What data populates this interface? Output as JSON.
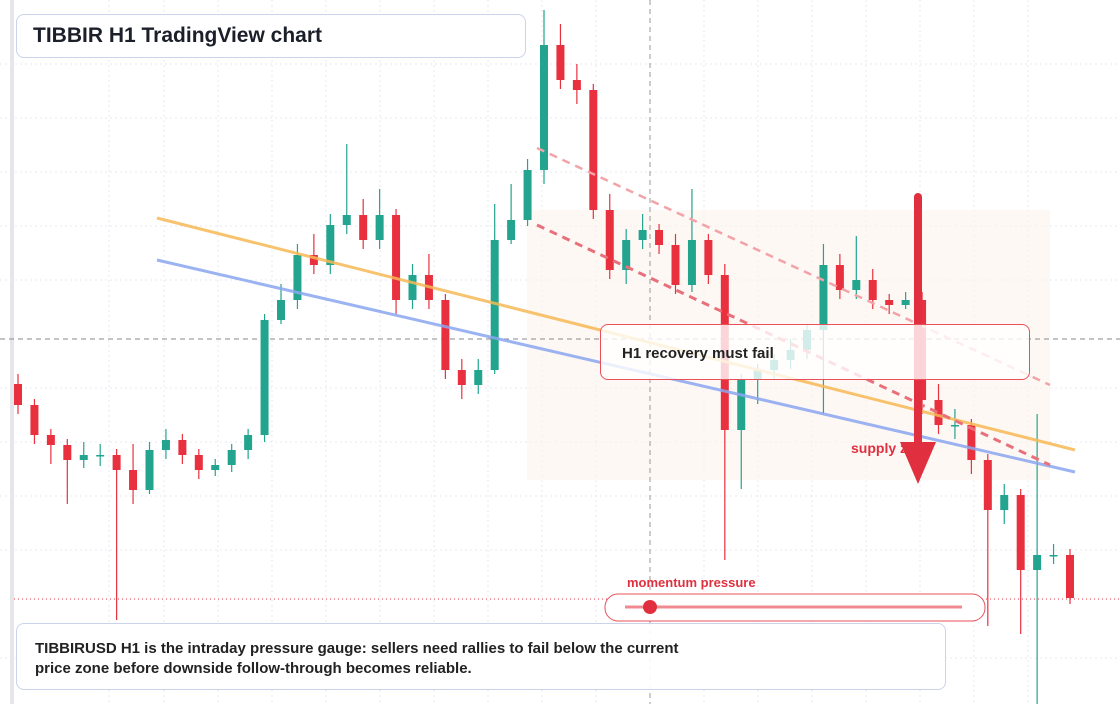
{
  "chart_data": {
    "type": "candlestick",
    "title": "TIBBIR H1 TradingView chart",
    "annotations": {
      "recovery": "H1 recovery must fail",
      "supply": "supply zone",
      "momentum": "momentum pressure"
    },
    "caption": "TIBBIRUSD H1 is the intraday pressure gauge: sellers need rallies to fail below the current price zone before downside follow-through becomes reliable.",
    "up_color": "#22a48f",
    "down_color": "#e8303f",
    "ylim": [
      0,
      704
    ],
    "ohlc": [
      [
        320,
        330,
        290,
        299
      ],
      [
        299,
        305,
        260,
        269
      ],
      [
        269,
        275,
        240,
        259
      ],
      [
        259,
        265,
        200,
        244
      ],
      [
        244,
        262,
        236,
        249
      ],
      [
        249,
        260,
        238,
        249
      ],
      [
        249,
        255,
        84,
        234
      ],
      [
        234,
        260,
        200,
        214
      ],
      [
        214,
        262,
        210,
        254
      ],
      [
        254,
        275,
        245,
        264
      ],
      [
        264,
        270,
        240,
        249
      ],
      [
        249,
        255,
        225,
        234
      ],
      [
        234,
        245,
        228,
        239
      ],
      [
        239,
        260,
        232,
        254
      ],
      [
        254,
        275,
        245,
        269
      ],
      [
        269,
        390,
        262,
        384
      ],
      [
        384,
        420,
        380,
        404
      ],
      [
        404,
        460,
        395,
        449
      ],
      [
        449,
        470,
        430,
        439
      ],
      [
        439,
        490,
        430,
        479
      ],
      [
        479,
        560,
        470,
        489
      ],
      [
        489,
        505,
        455,
        464
      ],
      [
        464,
        515,
        455,
        489
      ],
      [
        489,
        495,
        390,
        404
      ],
      [
        404,
        440,
        395,
        429
      ],
      [
        429,
        450,
        395,
        404
      ],
      [
        404,
        410,
        325,
        334
      ],
      [
        334,
        345,
        305,
        319
      ],
      [
        319,
        345,
        310,
        334
      ],
      [
        334,
        500,
        330,
        464
      ],
      [
        464,
        520,
        460,
        484
      ],
      [
        484,
        545,
        478,
        534
      ],
      [
        534,
        694,
        520,
        659
      ],
      [
        659,
        680,
        615,
        624
      ],
      [
        624,
        640,
        600,
        614
      ],
      [
        614,
        620,
        485,
        494
      ],
      [
        494,
        510,
        425,
        434
      ],
      [
        434,
        475,
        420,
        464
      ],
      [
        464,
        490,
        455,
        474
      ],
      [
        474,
        480,
        450,
        459
      ],
      [
        459,
        470,
        410,
        419
      ],
      [
        419,
        515,
        412,
        464
      ],
      [
        464,
        470,
        420,
        429
      ],
      [
        429,
        440,
        144,
        274
      ],
      [
        274,
        330,
        215,
        324
      ],
      [
        324,
        340,
        300,
        334
      ],
      [
        334,
        350,
        325,
        344
      ],
      [
        344,
        365,
        335,
        354
      ],
      [
        354,
        380,
        345,
        374
      ],
      [
        374,
        460,
        290,
        439
      ],
      [
        439,
        450,
        405,
        414
      ],
      [
        414,
        468,
        405,
        424
      ],
      [
        424,
        435,
        395,
        404
      ],
      [
        404,
        410,
        390,
        399
      ],
      [
        399,
        412,
        395,
        404
      ],
      [
        404,
        412,
        290,
        304
      ],
      [
        304,
        320,
        270,
        279
      ],
      [
        279,
        295,
        265,
        279
      ],
      [
        279,
        285,
        230,
        244
      ],
      [
        244,
        250,
        78,
        194
      ],
      [
        194,
        220,
        180,
        209
      ],
      [
        209,
        215,
        70,
        134
      ],
      [
        134,
        290,
        0,
        149
      ],
      [
        149,
        160,
        140,
        149
      ],
      [
        149,
        155,
        100,
        106
      ]
    ]
  }
}
